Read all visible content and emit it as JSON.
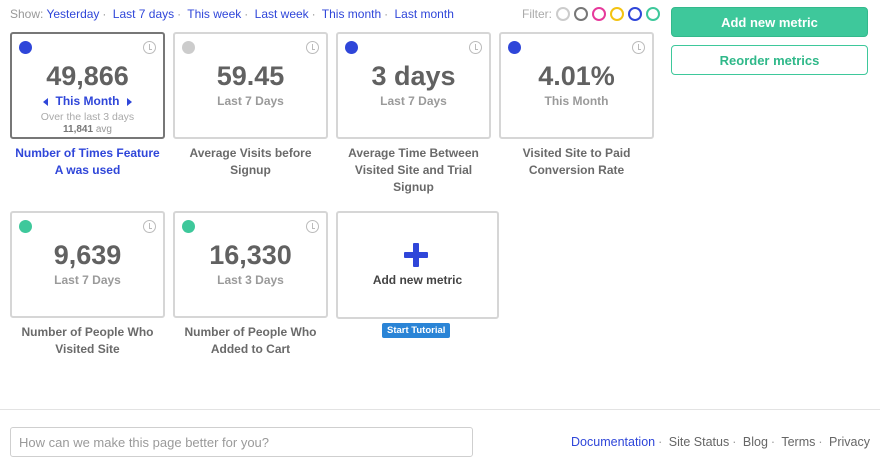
{
  "showbar": {
    "label": "Show:",
    "options": [
      "Yesterday",
      "Last 7 days",
      "This week",
      "Last week",
      "This month",
      "Last month"
    ]
  },
  "filter": {
    "label": "Filter:",
    "colors": [
      "#cccccc",
      "#777777",
      "#e6399b",
      "#f3c312",
      "#2f46d9",
      "#3ec89b"
    ]
  },
  "actions": {
    "add_metric": "Add new metric",
    "reorder": "Reorder metrics"
  },
  "metrics": [
    {
      "value": "49,866",
      "period": "This Month",
      "sub1": "Over the last 3 days",
      "sub2_value": "11,841",
      "sub2_unit": "avg",
      "caption": "Number of Times Feature A was used",
      "dot_color": "#2f46d9",
      "selected": true
    },
    {
      "value": "59.45",
      "period": "Last 7 Days",
      "caption": "Average Visits before Signup",
      "dot_color": "#cccccc"
    },
    {
      "value": "3 days",
      "period": "Last 7 Days",
      "caption": "Average Time Between Visited Site and Trial Signup",
      "dot_color": "#2f46d9"
    },
    {
      "value": "4.01%",
      "period": "This Month",
      "caption": "Visited Site to Paid Conversion Rate",
      "dot_color": "#2f46d9"
    },
    {
      "value": "9,639",
      "period": "Last 7 Days",
      "caption": "Number of People Who Visited Site",
      "dot_color": "#3ec89b"
    },
    {
      "value": "16,330",
      "period": "Last 3 Days",
      "caption": "Number of People Who Added to Cart",
      "dot_color": "#3ec89b"
    }
  ],
  "add_card": {
    "label": "Add new metric",
    "icon": "plus-icon",
    "tutorial": "Start Tutorial"
  },
  "footer": {
    "feedback_placeholder": "How can we make this page better for you?",
    "links": [
      "Documentation",
      "Site Status",
      "Blog",
      "Terms",
      "Privacy"
    ]
  }
}
